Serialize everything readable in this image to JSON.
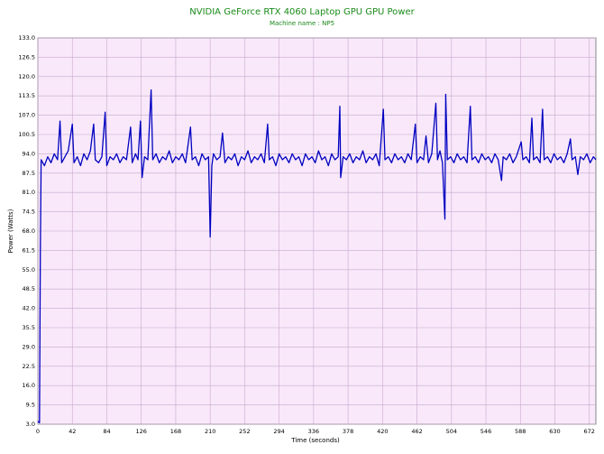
{
  "chart_data": {
    "type": "line",
    "title": "NVIDIA GeForce RTX 4060 Laptop GPU GPU Power",
    "subtitle": "Machine name : NP5",
    "xlabel": "Time (seconds)",
    "ylabel": "Power (Watts)",
    "color": "#0000c0",
    "grid": true,
    "xlim": [
      0,
      680
    ],
    "ylim": [
      3,
      133
    ],
    "xticks": [
      0,
      42,
      84,
      126,
      168,
      210,
      252,
      294,
      336,
      378,
      420,
      462,
      504,
      546,
      588,
      630,
      672
    ],
    "yticks": [
      {
        "value": 3,
        "label": "3.0"
      },
      9.5,
      {
        "value": 16,
        "label": "16.0"
      },
      22.5,
      {
        "value": 29,
        "label": "29.0"
      },
      35.5,
      {
        "value": 42,
        "label": "42.0"
      },
      48.5,
      {
        "value": 55,
        "label": "55.0"
      },
      61.5,
      {
        "value": 68,
        "label": "68.0"
      },
      74.5,
      {
        "value": 81,
        "label": "81.0"
      },
      87.5,
      {
        "value": 94,
        "label": "94.0"
      },
      100.5,
      {
        "value": 107,
        "label": "107.0"
      },
      113.5,
      {
        "value": 120,
        "label": "120.0"
      },
      126.5,
      {
        "value": 133,
        "label": "133.0"
      }
    ],
    "x": [
      0,
      2,
      3,
      4,
      8,
      12,
      16,
      20,
      24,
      27,
      29,
      33,
      37,
      42,
      44,
      48,
      52,
      56,
      60,
      64,
      68,
      70,
      74,
      78,
      82,
      84,
      88,
      92,
      96,
      100,
      104,
      108,
      113,
      115,
      119,
      122,
      125,
      127,
      130,
      134,
      138,
      140,
      144,
      148,
      152,
      156,
      160,
      164,
      168,
      172,
      176,
      180,
      186,
      188,
      192,
      196,
      200,
      204,
      208,
      210,
      212,
      214,
      218,
      222,
      225,
      228,
      232,
      236,
      240,
      244,
      248,
      252,
      256,
      260,
      264,
      268,
      272,
      276,
      280,
      282,
      286,
      290,
      294,
      298,
      302,
      306,
      310,
      314,
      318,
      322,
      326,
      330,
      334,
      338,
      342,
      346,
      350,
      354,
      358,
      362,
      366,
      368,
      369,
      372,
      376,
      380,
      384,
      388,
      392,
      396,
      400,
      404,
      408,
      412,
      416,
      421,
      423,
      427,
      431,
      435,
      439,
      443,
      447,
      451,
      455,
      460,
      462,
      466,
      470,
      473,
      476,
      480,
      485,
      487,
      490,
      493,
      496,
      497,
      499,
      503,
      507,
      511,
      515,
      519,
      523,
      527,
      529,
      533,
      537,
      541,
      545,
      549,
      553,
      557,
      561,
      565,
      567,
      571,
      575,
      579,
      583,
      589,
      591,
      595,
      599,
      602,
      604,
      608,
      612,
      615,
      617,
      621,
      625,
      629,
      633,
      637,
      641,
      645,
      649,
      651,
      655,
      658,
      661,
      665,
      669,
      673,
      677,
      680
    ],
    "values": [
      4,
      3.5,
      60,
      92,
      90,
      93,
      91,
      94,
      92,
      105,
      91,
      93,
      95,
      104,
      91,
      93,
      90,
      94,
      92,
      95,
      104,
      92,
      91,
      93,
      108,
      90,
      93,
      92,
      94,
      91,
      93,
      92,
      103,
      91,
      94,
      92,
      105,
      86,
      93,
      92,
      115.5,
      92,
      94,
      91,
      93,
      92,
      95,
      91,
      93,
      92,
      94,
      91,
      103,
      92,
      93,
      90,
      94,
      92,
      93,
      66,
      90,
      94,
      92,
      93,
      101,
      91,
      93,
      92,
      94,
      90,
      93,
      92,
      95,
      91,
      93,
      92,
      94,
      91,
      104,
      92,
      93,
      90,
      94,
      92,
      93,
      91,
      94,
      92,
      93,
      90,
      94,
      92,
      93,
      91,
      95,
      92,
      93,
      90,
      94,
      92,
      93,
      110,
      86,
      93,
      92,
      94,
      91,
      93,
      92,
      95,
      91,
      93,
      92,
      94,
      90,
      109,
      92,
      93,
      91,
      94,
      92,
      93,
      91,
      94,
      92,
      104,
      91,
      93,
      92,
      100,
      91,
      94,
      111,
      92,
      95,
      91,
      72,
      114,
      92,
      93,
      91,
      94,
      92,
      93,
      91,
      110,
      92,
      93,
      91,
      94,
      92,
      93,
      91,
      94,
      92,
      85,
      93,
      92,
      94,
      91,
      93,
      98,
      92,
      93,
      91,
      106,
      92,
      93,
      91,
      109,
      92,
      93,
      91,
      94,
      92,
      93,
      91,
      94,
      99,
      92,
      93,
      87,
      93,
      92,
      94,
      91,
      93,
      92
    ]
  }
}
